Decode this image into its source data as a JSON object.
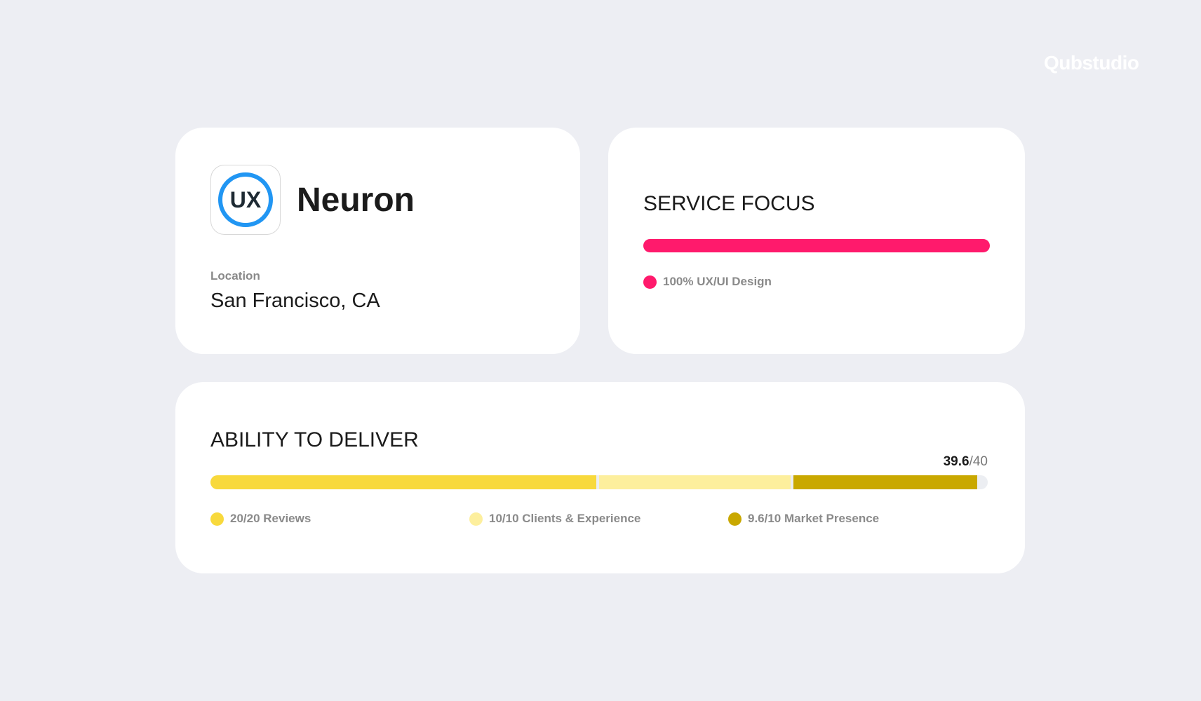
{
  "brand": "Qubstudio",
  "company": {
    "logo_text": "UX",
    "name": "Neuron",
    "location_label": "Location",
    "location": "San Francisco, CA"
  },
  "service_focus": {
    "title": "SERVICE FOCUS",
    "color": "#ff1a6c",
    "percent": 100,
    "legend": "100% UX/UI Design"
  },
  "ability": {
    "title": "ABILITY TO DELIVER",
    "score": "39.6",
    "max": "/40",
    "segments": [
      {
        "label": "20/20 Reviews",
        "value": 20,
        "color": "#f8d93c"
      },
      {
        "label": "10/10 Clients & Experience",
        "value": 10,
        "color": "#fdef9d"
      },
      {
        "label": "9.6/10 Market Presence",
        "value": 9.6,
        "color": "#c9a800"
      }
    ]
  }
}
